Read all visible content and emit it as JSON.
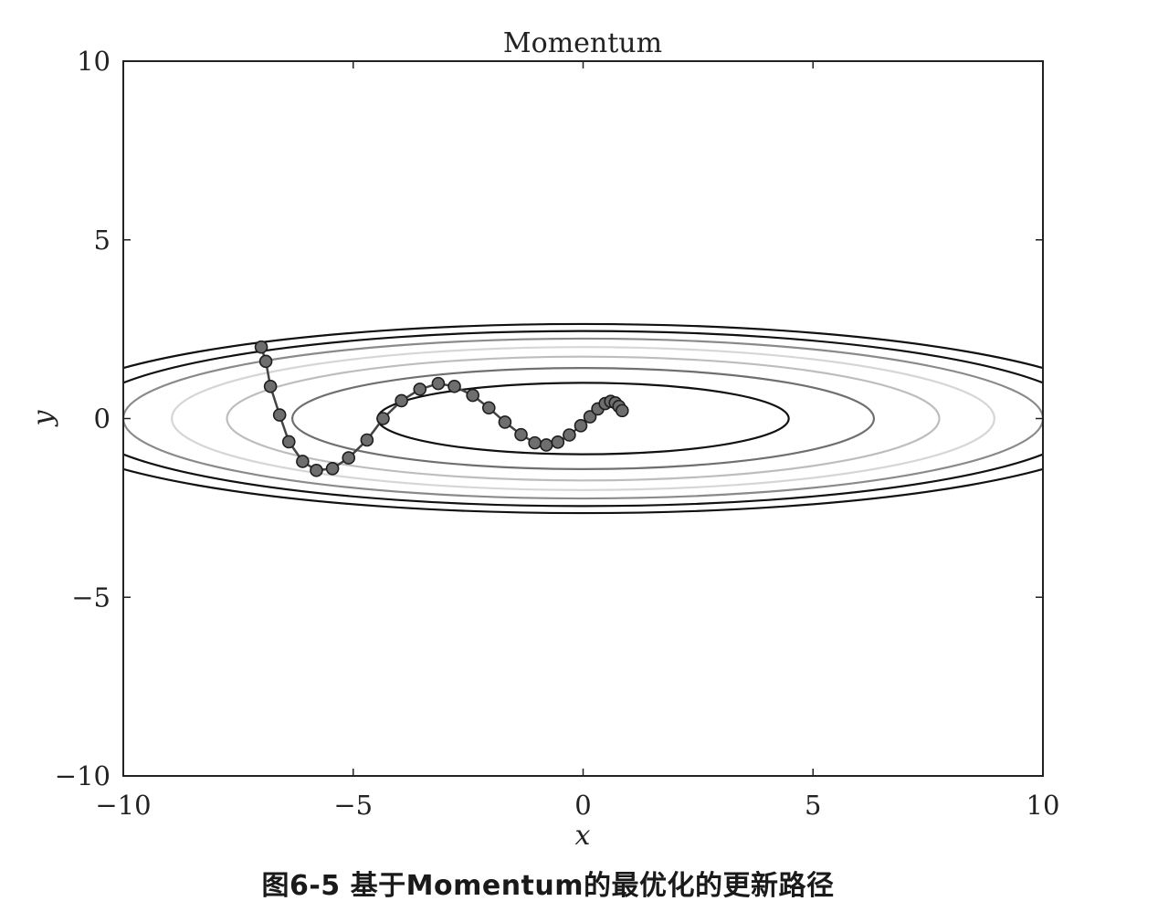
{
  "chart_data": {
    "type": "line",
    "title": "Momentum",
    "xlabel": "x",
    "ylabel": "y",
    "xlim": [
      -10,
      10
    ],
    "ylim": [
      -10,
      10
    ],
    "x_ticks": [
      -10,
      -5,
      0,
      5,
      10
    ],
    "y_ticks": [
      -10,
      -5,
      0,
      5,
      10
    ],
    "x_tick_labels": [
      "−10",
      "−5",
      "0",
      "5",
      "10"
    ],
    "y_tick_labels": [
      "−10",
      "−5",
      "0",
      "5",
      "10"
    ],
    "grid": false,
    "legend": "none",
    "contours": {
      "function": "f(x, y) = x^2 / 20 + y^2",
      "levels": [
        {
          "value": 1,
          "color": "#111111"
        },
        {
          "value": 2,
          "color": "#6f6f6f"
        },
        {
          "value": 3,
          "color": "#bdbdbd"
        },
        {
          "value": 4,
          "color": "#d6d6d6"
        },
        {
          "value": 5,
          "color": "#8a8a8a"
        },
        {
          "value": 6,
          "color": "#111111"
        },
        {
          "value": 7,
          "color": "#111111"
        }
      ]
    },
    "series": [
      {
        "points": [
          [
            -7.0,
            2.0
          ],
          [
            -6.9,
            1.6
          ],
          [
            -6.8,
            0.9
          ],
          [
            -6.6,
            0.1
          ],
          [
            -6.4,
            -0.65
          ],
          [
            -6.1,
            -1.2
          ],
          [
            -5.8,
            -1.45
          ],
          [
            -5.45,
            -1.4
          ],
          [
            -5.1,
            -1.1
          ],
          [
            -4.7,
            -0.6
          ],
          [
            -4.35,
            0.0
          ],
          [
            -3.95,
            0.5
          ],
          [
            -3.55,
            0.82
          ],
          [
            -3.15,
            0.98
          ],
          [
            -2.8,
            0.9
          ],
          [
            -2.4,
            0.65
          ],
          [
            -2.05,
            0.3
          ],
          [
            -1.7,
            -0.1
          ],
          [
            -1.35,
            -0.45
          ],
          [
            -1.05,
            -0.68
          ],
          [
            -0.8,
            -0.74
          ],
          [
            -0.55,
            -0.66
          ],
          [
            -0.3,
            -0.46
          ],
          [
            -0.05,
            -0.2
          ],
          [
            0.15,
            0.05
          ],
          [
            0.32,
            0.27
          ],
          [
            0.48,
            0.42
          ],
          [
            0.6,
            0.48
          ],
          [
            0.7,
            0.44
          ],
          [
            0.78,
            0.34
          ],
          [
            0.85,
            0.22
          ]
        ],
        "line_color": "#444444",
        "marker_color": "#6e6e6e"
      }
    ]
  },
  "caption": "图6-5 基于Momentum的最优化的更新路径"
}
